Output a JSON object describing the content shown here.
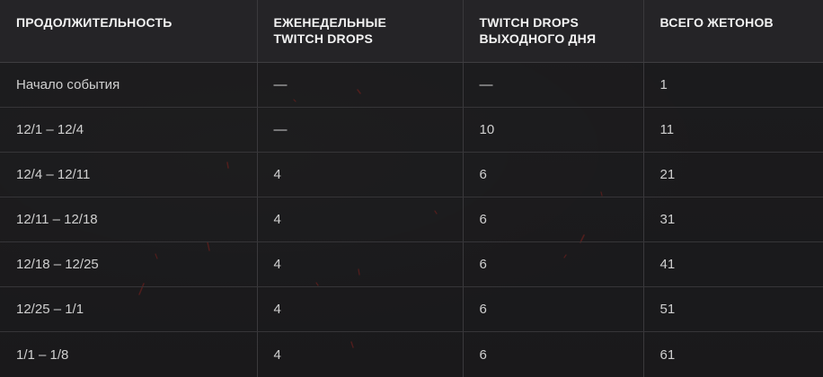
{
  "headers": [
    [
      "ПРОДОЛЖИТЕЛЬНОСТЬ"
    ],
    [
      "ЕЖЕНЕДЕЛЬНЫЕ",
      "TWITCH DROPS"
    ],
    [
      "TWITCH DROPS",
      "ВЫХОДНОГО ДНЯ"
    ],
    [
      "ВСЕГО ЖЕТОНОВ"
    ]
  ],
  "rows": [
    [
      "Начало события",
      "—",
      "—",
      "1"
    ],
    [
      "12/1 – 12/4",
      "—",
      "10",
      "11"
    ],
    [
      "12/4 – 12/11",
      "4",
      "6",
      "21"
    ],
    [
      "12/11 – 12/18",
      "4",
      "6",
      "31"
    ],
    [
      "12/18 – 12/25",
      "4",
      "6",
      "41"
    ],
    [
      "12/25 – 1/1",
      "4",
      "6",
      "51"
    ],
    [
      "1/1 – 1/8",
      "4",
      "6",
      "61"
    ]
  ],
  "colors": {
    "background": "#1b1a1c",
    "header_bg": "#252427",
    "grid": "#3a393c",
    "text": "#d0d0d0",
    "header_text": "#f2f2f2",
    "spark": "#b3261e"
  }
}
